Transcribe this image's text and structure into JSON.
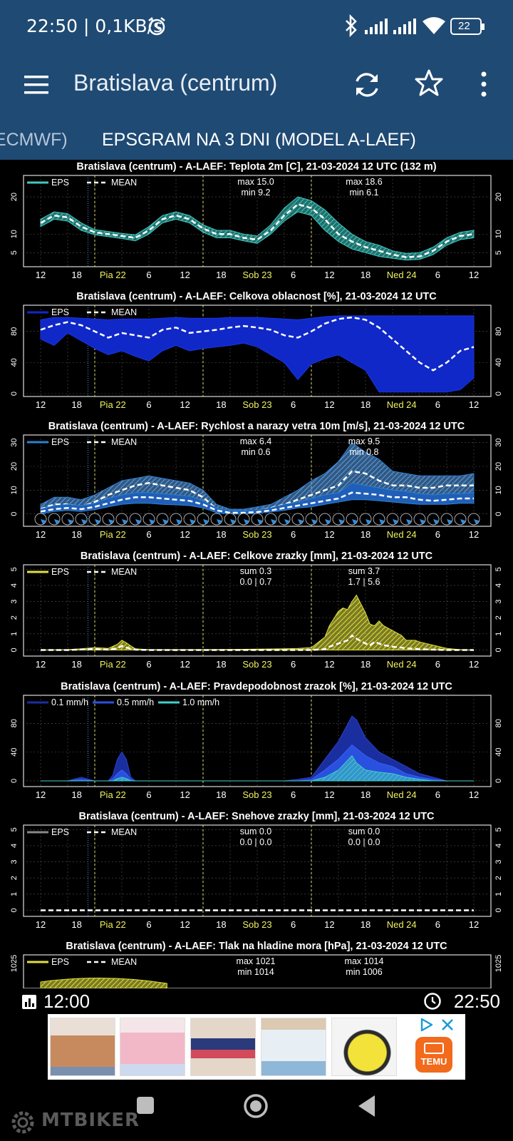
{
  "status_bar": {
    "time_speed": "22:50 | 0,1KB/s",
    "battery": "22",
    "icons": [
      "alarm-icon",
      "bluetooth-icon",
      "signal-icon",
      "signal-icon",
      "wifi-icon",
      "battery-icon"
    ]
  },
  "app_bar": {
    "title": "Bratislava (centrum)",
    "icons": [
      "menu-icon",
      "refresh-icon",
      "star-icon",
      "more-vert-icon"
    ]
  },
  "tabs": [
    {
      "label": "L ECMWF)",
      "active": false
    },
    {
      "label": "EPSGRAM NA 3 DNI (MODEL A-LAEF)",
      "active": true
    }
  ],
  "x_ticks": [
    "12",
    "18",
    "Pia 22",
    "6",
    "12",
    "18",
    "Sob 23",
    "6",
    "12",
    "18",
    "Ned 24",
    "6",
    "12"
  ],
  "colors": {
    "header": "#1f4a73",
    "teal": "#40c8c0",
    "cloud": "#1028c8",
    "wind": "#2e7fd0",
    "rain": "#e0e040",
    "prob_light": "#1a2ea0",
    "prob_mid": "#2a50e0",
    "prob_high": "#40d0c8"
  },
  "chart_data": [
    {
      "type": "area",
      "title": "Bratislava (centrum) - A-LAEF: Teplota 2m [C], 21-03-2024 12 UTC (132 m)",
      "legend": [
        "EPS",
        "MEAN"
      ],
      "ylim": [
        2,
        25
      ],
      "yticks": [
        "5",
        "10",
        "20"
      ],
      "annotations": [
        {
          "text1": "max 15.0",
          "text2": "min 9.2",
          "at": 48
        },
        {
          "text1": "max 18.6",
          "text2": "min 6.1",
          "at": 72
        }
      ],
      "x": [
        0,
        3,
        6,
        9,
        12,
        15,
        18,
        21,
        24,
        27,
        30,
        33,
        36,
        39,
        42,
        45,
        48,
        51,
        54,
        57,
        60,
        63,
        66,
        69,
        72,
        75,
        78,
        81,
        84,
        87,
        90,
        93,
        96
      ],
      "mean": [
        13,
        15,
        14.5,
        12,
        10.5,
        10,
        9.5,
        9,
        11,
        14,
        15,
        14,
        11.5,
        10,
        10,
        9,
        8.5,
        11,
        15,
        18,
        17,
        14,
        10,
        8,
        6.5,
        5.5,
        4.5,
        3.8,
        4,
        5.5,
        8,
        9.5,
        10
      ],
      "low": [
        12,
        14,
        13.5,
        11,
        9.8,
        9.3,
        8.8,
        8.2,
        10,
        13,
        14,
        13,
        10.5,
        9,
        9,
        8.2,
        7.5,
        10,
        13.5,
        16,
        15,
        11,
        8,
        6,
        5,
        4,
        3.5,
        3,
        3.2,
        4.5,
        7,
        8.5,
        9
      ],
      "high": [
        14,
        16,
        15.5,
        13,
        11.2,
        10.7,
        10.2,
        9.8,
        12,
        15,
        16,
        15,
        12.5,
        11,
        11,
        10,
        9.5,
        12.5,
        17,
        20,
        19,
        16.5,
        13,
        10,
        8,
        7,
        5.5,
        4.8,
        5,
        6.5,
        9,
        10.5,
        11
      ]
    },
    {
      "type": "area",
      "title": "Bratislava (centrum) - A-LAEF: Celkova oblacnost [%], 21-03-2024 12 UTC",
      "legend": [
        "EPS",
        "MEAN"
      ],
      "ylim": [
        0,
        110
      ],
      "yticks": [
        "0",
        "40",
        "80"
      ],
      "x": [
        0,
        3,
        6,
        9,
        12,
        15,
        18,
        21,
        24,
        27,
        30,
        33,
        36,
        39,
        42,
        45,
        48,
        51,
        54,
        57,
        60,
        63,
        66,
        69,
        72,
        75,
        78,
        81,
        84,
        87,
        90,
        93,
        96
      ],
      "mean": [
        82,
        88,
        92,
        88,
        80,
        72,
        78,
        75,
        72,
        82,
        85,
        78,
        80,
        82,
        85,
        87,
        85,
        82,
        75,
        72,
        80,
        90,
        96,
        98,
        95,
        85,
        70,
        55,
        40,
        30,
        40,
        55,
        60
      ],
      "low": [
        70,
        62,
        78,
        68,
        58,
        50,
        55,
        48,
        42,
        55,
        62,
        55,
        58,
        60,
        62,
        65,
        60,
        50,
        40,
        18,
        38,
        45,
        50,
        40,
        30,
        2,
        2,
        2,
        2,
        2,
        2,
        5,
        20
      ],
      "high": [
        95,
        98,
        98,
        97,
        96,
        95,
        96,
        96,
        96,
        97,
        98,
        97,
        97,
        97,
        98,
        98,
        98,
        97,
        96,
        95,
        97,
        99,
        100,
        100,
        100,
        100,
        100,
        100,
        100,
        100,
        100,
        100,
        100
      ]
    },
    {
      "type": "area",
      "title": "Bratislava (centrum) - A-LAEF: Rychlost a narazy vetra 10m [m/s], 21-03-2024 12 UTC",
      "legend": [
        "EPS",
        "MEAN"
      ],
      "ylim": [
        -4,
        32
      ],
      "yticks": [
        "0",
        "10",
        "20",
        "30"
      ],
      "annotations": [
        {
          "text1": "max 6.4",
          "text2": "min 0.6",
          "at": 48
        },
        {
          "text1": "max 9.5",
          "text2": "min 0.8",
          "at": 72
        }
      ],
      "x": [
        0,
        3,
        6,
        9,
        12,
        15,
        18,
        21,
        24,
        27,
        30,
        33,
        36,
        39,
        42,
        45,
        48,
        51,
        54,
        57,
        60,
        63,
        66,
        69,
        72,
        75,
        78,
        81,
        84,
        87,
        90,
        93,
        96
      ],
      "gust_mean": [
        2,
        4,
        4,
        3,
        5,
        8,
        10,
        12,
        13,
        12,
        11,
        10,
        7,
        2,
        1,
        1,
        1.5,
        2.5,
        4,
        6,
        8,
        10,
        12,
        18,
        17,
        14,
        12,
        12,
        11,
        11,
        12,
        12,
        12
      ],
      "gust_low": [
        0,
        2,
        2,
        1.5,
        3,
        5,
        7,
        8,
        9,
        8,
        7.5,
        7,
        4.5,
        0.5,
        0,
        0,
        0.5,
        1,
        2.5,
        4,
        6,
        7,
        8,
        10,
        10,
        9,
        8,
        7,
        7,
        7,
        8,
        8,
        8
      ],
      "gust_high": [
        4,
        7,
        7,
        6,
        8,
        11,
        14,
        15,
        16,
        15,
        14,
        13,
        10,
        4,
        2,
        2,
        3,
        4,
        7,
        10,
        14,
        17,
        22,
        30,
        26,
        23,
        18,
        17,
        16,
        16,
        16,
        16,
        17
      ],
      "mean": [
        1,
        2,
        2.5,
        2,
        3,
        4.5,
        6,
        7,
        7,
        6.5,
        6,
        5.5,
        4,
        1.5,
        0.5,
        0.5,
        0.8,
        1.5,
        2.5,
        3.5,
        4.5,
        5.5,
        6.5,
        9,
        8.5,
        8,
        7,
        7,
        6,
        5.5,
        6,
        6.5,
        6.5
      ],
      "low": [
        0,
        1,
        1.5,
        1,
        1.8,
        3,
        4,
        4.5,
        4.5,
        4,
        3.8,
        3.5,
        2.5,
        0.5,
        0,
        0,
        0.3,
        0.8,
        1.5,
        2.5,
        3,
        4,
        5,
        6,
        6,
        5.5,
        5,
        4.5,
        4,
        4,
        4,
        4.5,
        4.5
      ],
      "high": [
        2,
        3.5,
        4,
        3.5,
        4.5,
        6.5,
        8,
        9,
        9,
        8.5,
        8,
        7.5,
        5.5,
        2.5,
        1.5,
        1.5,
        1.8,
        2.5,
        4,
        5,
        6.5,
        8,
        9,
        13,
        12,
        11,
        10,
        9.5,
        8.5,
        8,
        8.5,
        8.5,
        9
      ]
    },
    {
      "type": "area",
      "title": "Bratislava (centrum) - A-LAEF: Celkove zrazky [mm], 21-03-2024 12 UTC",
      "legend": [
        "EPS",
        "MEAN"
      ],
      "ylim": [
        -0.2,
        5.1
      ],
      "yticks": [
        "0",
        "1",
        "2",
        "3",
        "4",
        "5"
      ],
      "annotations": [
        {
          "text1": "sum 0.3",
          "text2": "0.0 | 0.7",
          "at": 48
        },
        {
          "text1": "sum 3.7",
          "text2": "1.7 | 5.6",
          "at": 72
        }
      ],
      "x": [
        0,
        6,
        9,
        12,
        15,
        17,
        18,
        19,
        20,
        21,
        24,
        27,
        30,
        36,
        42,
        48,
        54,
        57,
        60,
        63,
        64,
        66,
        67,
        68,
        69,
        70,
        72,
        73,
        74,
        75,
        76,
        78,
        80,
        81,
        83,
        84,
        87,
        90,
        93,
        96
      ],
      "mean": [
        0,
        0,
        0.03,
        0.05,
        0.02,
        0.1,
        0.25,
        0.15,
        0.08,
        0.02,
        0,
        0,
        0,
        0,
        0,
        0,
        0,
        0,
        0,
        0.05,
        0.2,
        0.4,
        0.5,
        0.6,
        0.9,
        0.7,
        0.4,
        0.3,
        0.5,
        0.4,
        0.3,
        0.2,
        0.15,
        0.1,
        0.08,
        0.05,
        0.02,
        0,
        0,
        0
      ],
      "high": [
        0,
        0.02,
        0.08,
        0.15,
        0.1,
        0.35,
        0.6,
        0.45,
        0.25,
        0.08,
        0.02,
        0.02,
        0.02,
        0.02,
        0.03,
        0.05,
        0.08,
        0.1,
        0.15,
        0.8,
        1.5,
        2.4,
        2.6,
        2.5,
        3.0,
        3.4,
        2.3,
        1.6,
        1.5,
        1.8,
        1.5,
        1.2,
        0.9,
        0.6,
        0.6,
        0.5,
        0.3,
        0.1,
        0.02,
        0
      ]
    },
    {
      "type": "area",
      "title": "Bratislava (centrum) - A-LAEF: Pravdepodobnost zrazok [%], 21-03-2024 12 UTC",
      "legend": [
        "0.1 mm/h",
        "0.5 mm/h",
        "1.0 mm/h"
      ],
      "ylim": [
        -4,
        115
      ],
      "yticks": [
        "0",
        "40",
        "80"
      ],
      "x": [
        0,
        6,
        9,
        12,
        15,
        16,
        17,
        18,
        19,
        20,
        21,
        24,
        27,
        30,
        36,
        42,
        48,
        54,
        57,
        60,
        63,
        66,
        69,
        70,
        72,
        75,
        78,
        81,
        84,
        87,
        90,
        96
      ],
      "p01": [
        0,
        0,
        5,
        0,
        0,
        8,
        30,
        40,
        30,
        5,
        0,
        0,
        0,
        0,
        0,
        0,
        0,
        0,
        2,
        5,
        30,
        55,
        90,
        85,
        60,
        40,
        30,
        20,
        10,
        5,
        0,
        0
      ],
      "p05": [
        0,
        0,
        2,
        0,
        0,
        3,
        10,
        15,
        10,
        2,
        0,
        0,
        0,
        0,
        0,
        0,
        0,
        0,
        0,
        2,
        15,
        30,
        50,
        45,
        35,
        25,
        20,
        10,
        5,
        2,
        0,
        0
      ],
      "p10": [
        0,
        0,
        0,
        0,
        0,
        0,
        3,
        5,
        3,
        0,
        0,
        0,
        0,
        0,
        0,
        0,
        0,
        0,
        0,
        0,
        5,
        15,
        35,
        25,
        15,
        12,
        10,
        5,
        2,
        0,
        0,
        0
      ]
    },
    {
      "type": "line",
      "title": "Bratislava (centrum) - A-LAEF: Snehove zrazky [mm], 21-03-2024 12 UTC",
      "legend": [
        "EPS",
        "MEAN"
      ],
      "ylim": [
        -0.2,
        5.1
      ],
      "yticks": [
        "0",
        "1",
        "2",
        "3",
        "4",
        "5"
      ],
      "annotations": [
        {
          "text1": "sum 0.0",
          "text2": "0.0 | 0.0",
          "at": 48
        },
        {
          "text1": "sum 0.0",
          "text2": "0.0 | 0.0",
          "at": 72
        }
      ],
      "x": [
        0,
        96
      ],
      "mean": [
        0,
        0
      ]
    },
    {
      "type": "area",
      "title": "Bratislava (centrum) - A-LAEF: Tlak na hladine mora [hPa], 21-03-2024 12 UTC",
      "legend": [
        "EPS",
        "MEAN"
      ],
      "yticks": [
        "1025"
      ],
      "annotations": [
        {
          "text1": "max 1021",
          "text2": "min 1014",
          "at": 48
        },
        {
          "text1": "max 1014",
          "text2": "min 1006",
          "at": 72
        }
      ]
    }
  ],
  "time_bar": {
    "left": "12:00",
    "right": "22:50"
  },
  "ad": {
    "brand": "TEMU"
  },
  "nav": {
    "watermark": "MTBIKER"
  }
}
